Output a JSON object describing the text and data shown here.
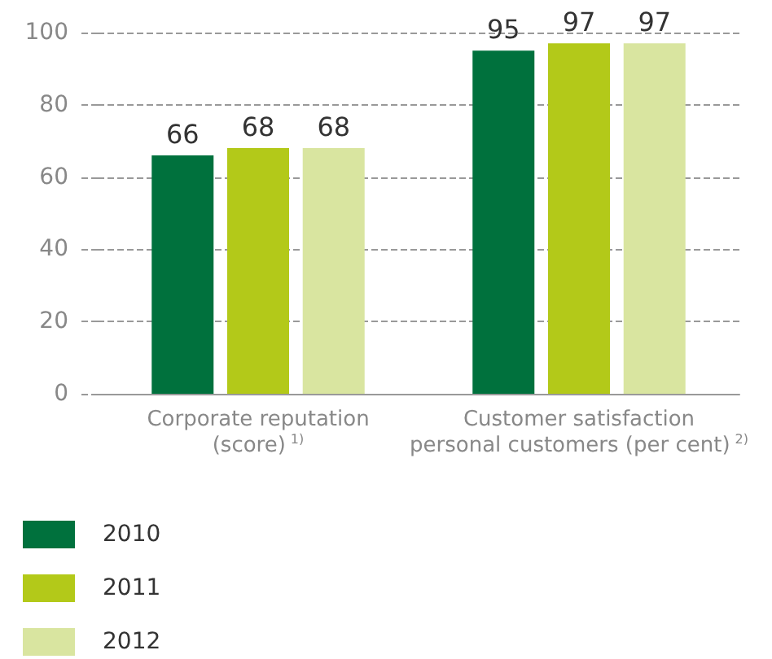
{
  "chart_data": {
    "type": "bar",
    "categories": [
      "Corporate reputation (score)$^{1)}$",
      "Customer satisfaction personal customers (per cent)$^{2)}$"
    ],
    "series": [
      {
        "name": "2010",
        "color": "#00713d",
        "values": [
          66,
          95
        ]
      },
      {
        "name": "2011",
        "color": "#b3c919",
        "values": [
          68,
          97
        ]
      },
      {
        "name": "2012",
        "color": "#d9e5a0",
        "values": [
          68,
          97
        ]
      }
    ],
    "ylim": [
      0,
      100
    ],
    "yticks": [
      0,
      20,
      40,
      60,
      80,
      100
    ],
    "grid": "y",
    "legend": "bottom",
    "data_labels": true
  }
}
